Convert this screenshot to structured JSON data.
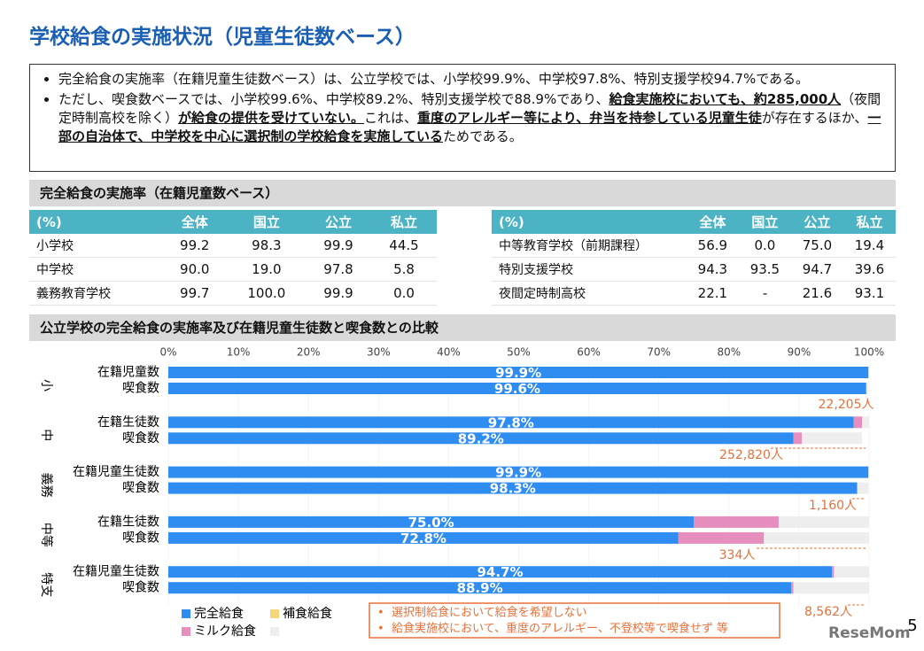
{
  "header": {
    "title": "学校給食の実施状況（児童生徒数ベース）"
  },
  "bullets": [
    {
      "segments": [
        {
          "text": "完全給食の実施率（在籍児童生徒数ベース）は、公立学校では、小学校99.9%、中学校97.8%、特別支援学校94.7%である。"
        }
      ]
    },
    {
      "segments": [
        {
          "text": "ただし、喫食数ベースでは、小学校99.6%、中学校89.2%、特別支援学校で88.9%であり、"
        },
        {
          "text": "給食実施校においても、約285,000人",
          "emphasis": true
        },
        {
          "text": "（夜間定時制高校を除く）"
        },
        {
          "text": "が給食の提供を受けていない。",
          "emphasis": true
        },
        {
          "text": "これは、"
        },
        {
          "text": "重度のアレルギー等により、弁当を持参している児童生徒",
          "emphasis": true
        },
        {
          "text": "が存在するほか、"
        },
        {
          "text": "一部の自治体で、中学校を中心に選択制の学校給食を実施している",
          "emphasis": true
        },
        {
          "text": "ためである。"
        }
      ]
    }
  ],
  "rate_section": {
    "title": "完全給食の実施率（在籍児童数ベース）"
  },
  "tables": [
    {
      "header": [
        "(%)",
        "全体",
        "国立",
        "公立",
        "私立"
      ],
      "rows": [
        [
          "小学校",
          "99.2",
          "98.3",
          "99.9",
          "44.5"
        ],
        [
          "中学校",
          "90.0",
          "19.0",
          "97.8",
          "5.8"
        ],
        [
          "義務教育学校",
          "99.7",
          "100.0",
          "99.9",
          "0.0"
        ]
      ]
    },
    {
      "header": [
        "(%)",
        "全体",
        "国立",
        "公立",
        "私立"
      ],
      "rows": [
        [
          "中等教育学校（前期課程）",
          "56.9",
          "0.0",
          "75.0",
          "19.4"
        ],
        [
          "特別支援学校",
          "94.3",
          "93.5",
          "94.7",
          "39.6"
        ],
        [
          "夜間定時制高校",
          "22.1",
          "-",
          "21.6",
          "93.1"
        ]
      ]
    }
  ],
  "chart_data": {
    "type": "bar",
    "orientation": "horizontal",
    "stacked": true,
    "title": "公立学校の完全給食の実施率及び在籍児童生徒数と喫食数との比較",
    "groups": [
      "小",
      "中",
      "義務",
      "中等",
      "特支"
    ],
    "categories": [
      "在籍児童数",
      "喫食数",
      "在籍生徒数",
      "喫食数",
      "在籍児童生徒数",
      "喫食数",
      "在籍生徒数",
      "喫食数",
      "在籍児童生徒数",
      "喫食数"
    ],
    "series": [
      {
        "name": "完全給食",
        "color": "#2f8cf0",
        "values": [
          99.9,
          99.6,
          97.8,
          89.2,
          99.9,
          98.3,
          75.0,
          72.8,
          94.7,
          88.9
        ],
        "value_labels": [
          "99.9%",
          "99.6%",
          "97.8%",
          "89.2%",
          "99.9%",
          "98.3%",
          "75.0%",
          "72.8%",
          "94.7%",
          "88.9%"
        ]
      },
      {
        "name": "補食給食",
        "color": "#f5d77a",
        "values": [
          0,
          0,
          0,
          0,
          0,
          0,
          0,
          0,
          0,
          0
        ]
      },
      {
        "name": "ミルク給食",
        "color": "#e68fbf",
        "values": [
          0,
          0,
          1.2,
          1.2,
          0,
          0,
          12.1,
          12.2,
          0.3,
          0.3
        ]
      },
      {
        "color": "#eeeeee",
        "values": [
          0,
          0.3,
          1.0,
          8.6,
          0,
          1.6,
          12.9,
          15.0,
          5.0,
          10.8
        ]
      }
    ],
    "xlim": [
      0,
      100
    ],
    "xticks": [
      {
        "value": 0,
        "label": "0%"
      },
      {
        "value": 10,
        "label": "10%"
      },
      {
        "value": 20,
        "label": "20%"
      },
      {
        "value": 30,
        "label": "30%"
      },
      {
        "value": 40,
        "label": "40%"
      },
      {
        "value": 50,
        "label": "50%"
      },
      {
        "value": 60,
        "label": "60%"
      },
      {
        "value": 70,
        "label": "70%"
      },
      {
        "value": 80,
        "label": "80%"
      },
      {
        "value": 90,
        "label": "90%"
      },
      {
        "value": 100,
        "label": "100%"
      }
    ],
    "annotations": [
      "22,205人",
      "252,820人",
      "1,160人",
      "334人",
      "8,562人"
    ],
    "notes": [
      "選択制給食において給食を希望しない",
      "給食実施校において、重度のアレルギー、不登校等で喫食せず 等"
    ]
  },
  "footer": {
    "logo": "ReseMom",
    "page": "5"
  }
}
